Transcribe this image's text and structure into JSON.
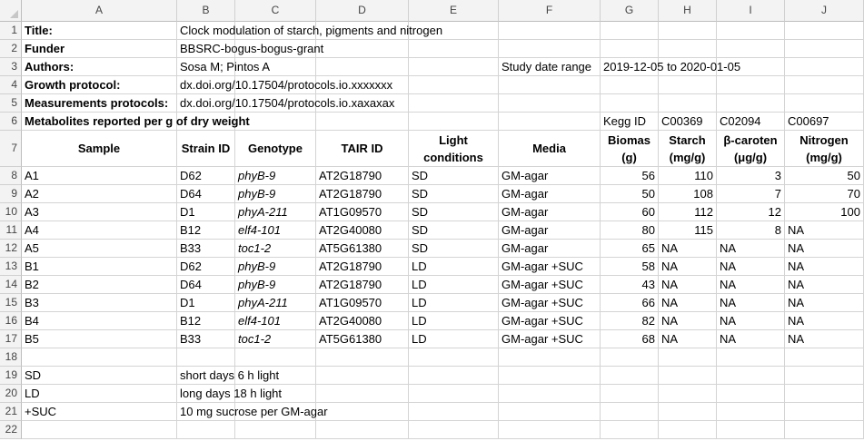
{
  "columns": [
    "A",
    "B",
    "C",
    "D",
    "E",
    "F",
    "G",
    "H",
    "I",
    "J"
  ],
  "rows": [
    [
      "Title:",
      "Clock modulation of starch, pigments and nitrogen",
      "",
      "",
      "",
      "",
      "",
      "",
      "",
      ""
    ],
    [
      "Funder",
      "BBSRC-bogus-bogus-grant",
      "",
      "",
      "",
      "",
      "",
      "",
      "",
      ""
    ],
    [
      "Authors:",
      "Sosa M; Pintos A",
      "",
      "",
      "",
      "Study date range",
      "2019-12-05 to 2020-01-05",
      "",
      "",
      ""
    ],
    [
      "Growth protocol:",
      "dx.doi.org/10.17504/protocols.io.xxxxxxx",
      "",
      "",
      "",
      "",
      "",
      "",
      "",
      ""
    ],
    [
      "Measurements protocols:",
      "dx.doi.org/10.17504/protocols.io.xaxaxax",
      "",
      "",
      "",
      "",
      "",
      "",
      "",
      ""
    ],
    [
      "Metabolites reported per g of dry weight",
      "",
      "",
      "",
      "",
      "",
      "Kegg ID",
      "C00369",
      "C02094",
      "C00697"
    ],
    [
      "Sample",
      "Strain ID",
      "Genotype",
      "TAIR ID",
      "Light conditions",
      "Media",
      "Biomas (g)",
      "Starch (mg/g)",
      "β-caroten (μg/g)",
      "Nitrogen (mg/g)"
    ],
    [
      "A1",
      "D62",
      "phyB-9",
      "AT2G18790",
      "SD",
      "GM-agar",
      "56",
      "110",
      "3",
      "50"
    ],
    [
      "A2",
      "D64",
      "phyB-9",
      "AT2G18790",
      "SD",
      "GM-agar",
      "50",
      "108",
      "7",
      "70"
    ],
    [
      "A3",
      "D1",
      "phyA-211",
      "AT1G09570",
      "SD",
      "GM-agar",
      "60",
      "112",
      "12",
      "100"
    ],
    [
      "A4",
      "B12",
      "elf4-101",
      "AT2G40080",
      "SD",
      "GM-agar",
      "80",
      "115",
      "8",
      "NA"
    ],
    [
      "A5",
      "B33",
      "toc1-2",
      "AT5G61380",
      "SD",
      "GM-agar",
      "65",
      "NA",
      "NA",
      "NA"
    ],
    [
      "B1",
      "D62",
      "phyB-9",
      "AT2G18790",
      "LD",
      "GM-agar +SUC",
      "58",
      "NA",
      "NA",
      "NA"
    ],
    [
      "B2",
      "D64",
      "phyB-9",
      "AT2G18790",
      "LD",
      "GM-agar +SUC",
      "43",
      "NA",
      "NA",
      "NA"
    ],
    [
      "B3",
      "D1",
      "phyA-211",
      "AT1G09570",
      "LD",
      "GM-agar +SUC",
      "66",
      "NA",
      "NA",
      "NA"
    ],
    [
      "B4",
      "B12",
      "elf4-101",
      "AT2G40080",
      "LD",
      "GM-agar +SUC",
      "82",
      "NA",
      "NA",
      "NA"
    ],
    [
      "B5",
      "B33",
      "toc1-2",
      "AT5G61380",
      "LD",
      "GM-agar +SUC",
      "68",
      "NA",
      "NA",
      "NA"
    ],
    [
      "",
      "",
      "",
      "",
      "",
      "",
      "",
      "",
      "",
      ""
    ],
    [
      "SD",
      "short days 6 h light",
      "",
      "",
      "",
      "",
      "",
      "",
      "",
      ""
    ],
    [
      "LD",
      "long days 18 h light",
      "",
      "",
      "",
      "",
      "",
      "",
      "",
      ""
    ],
    [
      "+SUC",
      "10 mg sucrose per GM-agar",
      "",
      "",
      "",
      "",
      "",
      "",
      "",
      ""
    ],
    [
      "",
      "",
      "",
      "",
      "",
      "",
      "",
      "",
      "",
      ""
    ]
  ]
}
